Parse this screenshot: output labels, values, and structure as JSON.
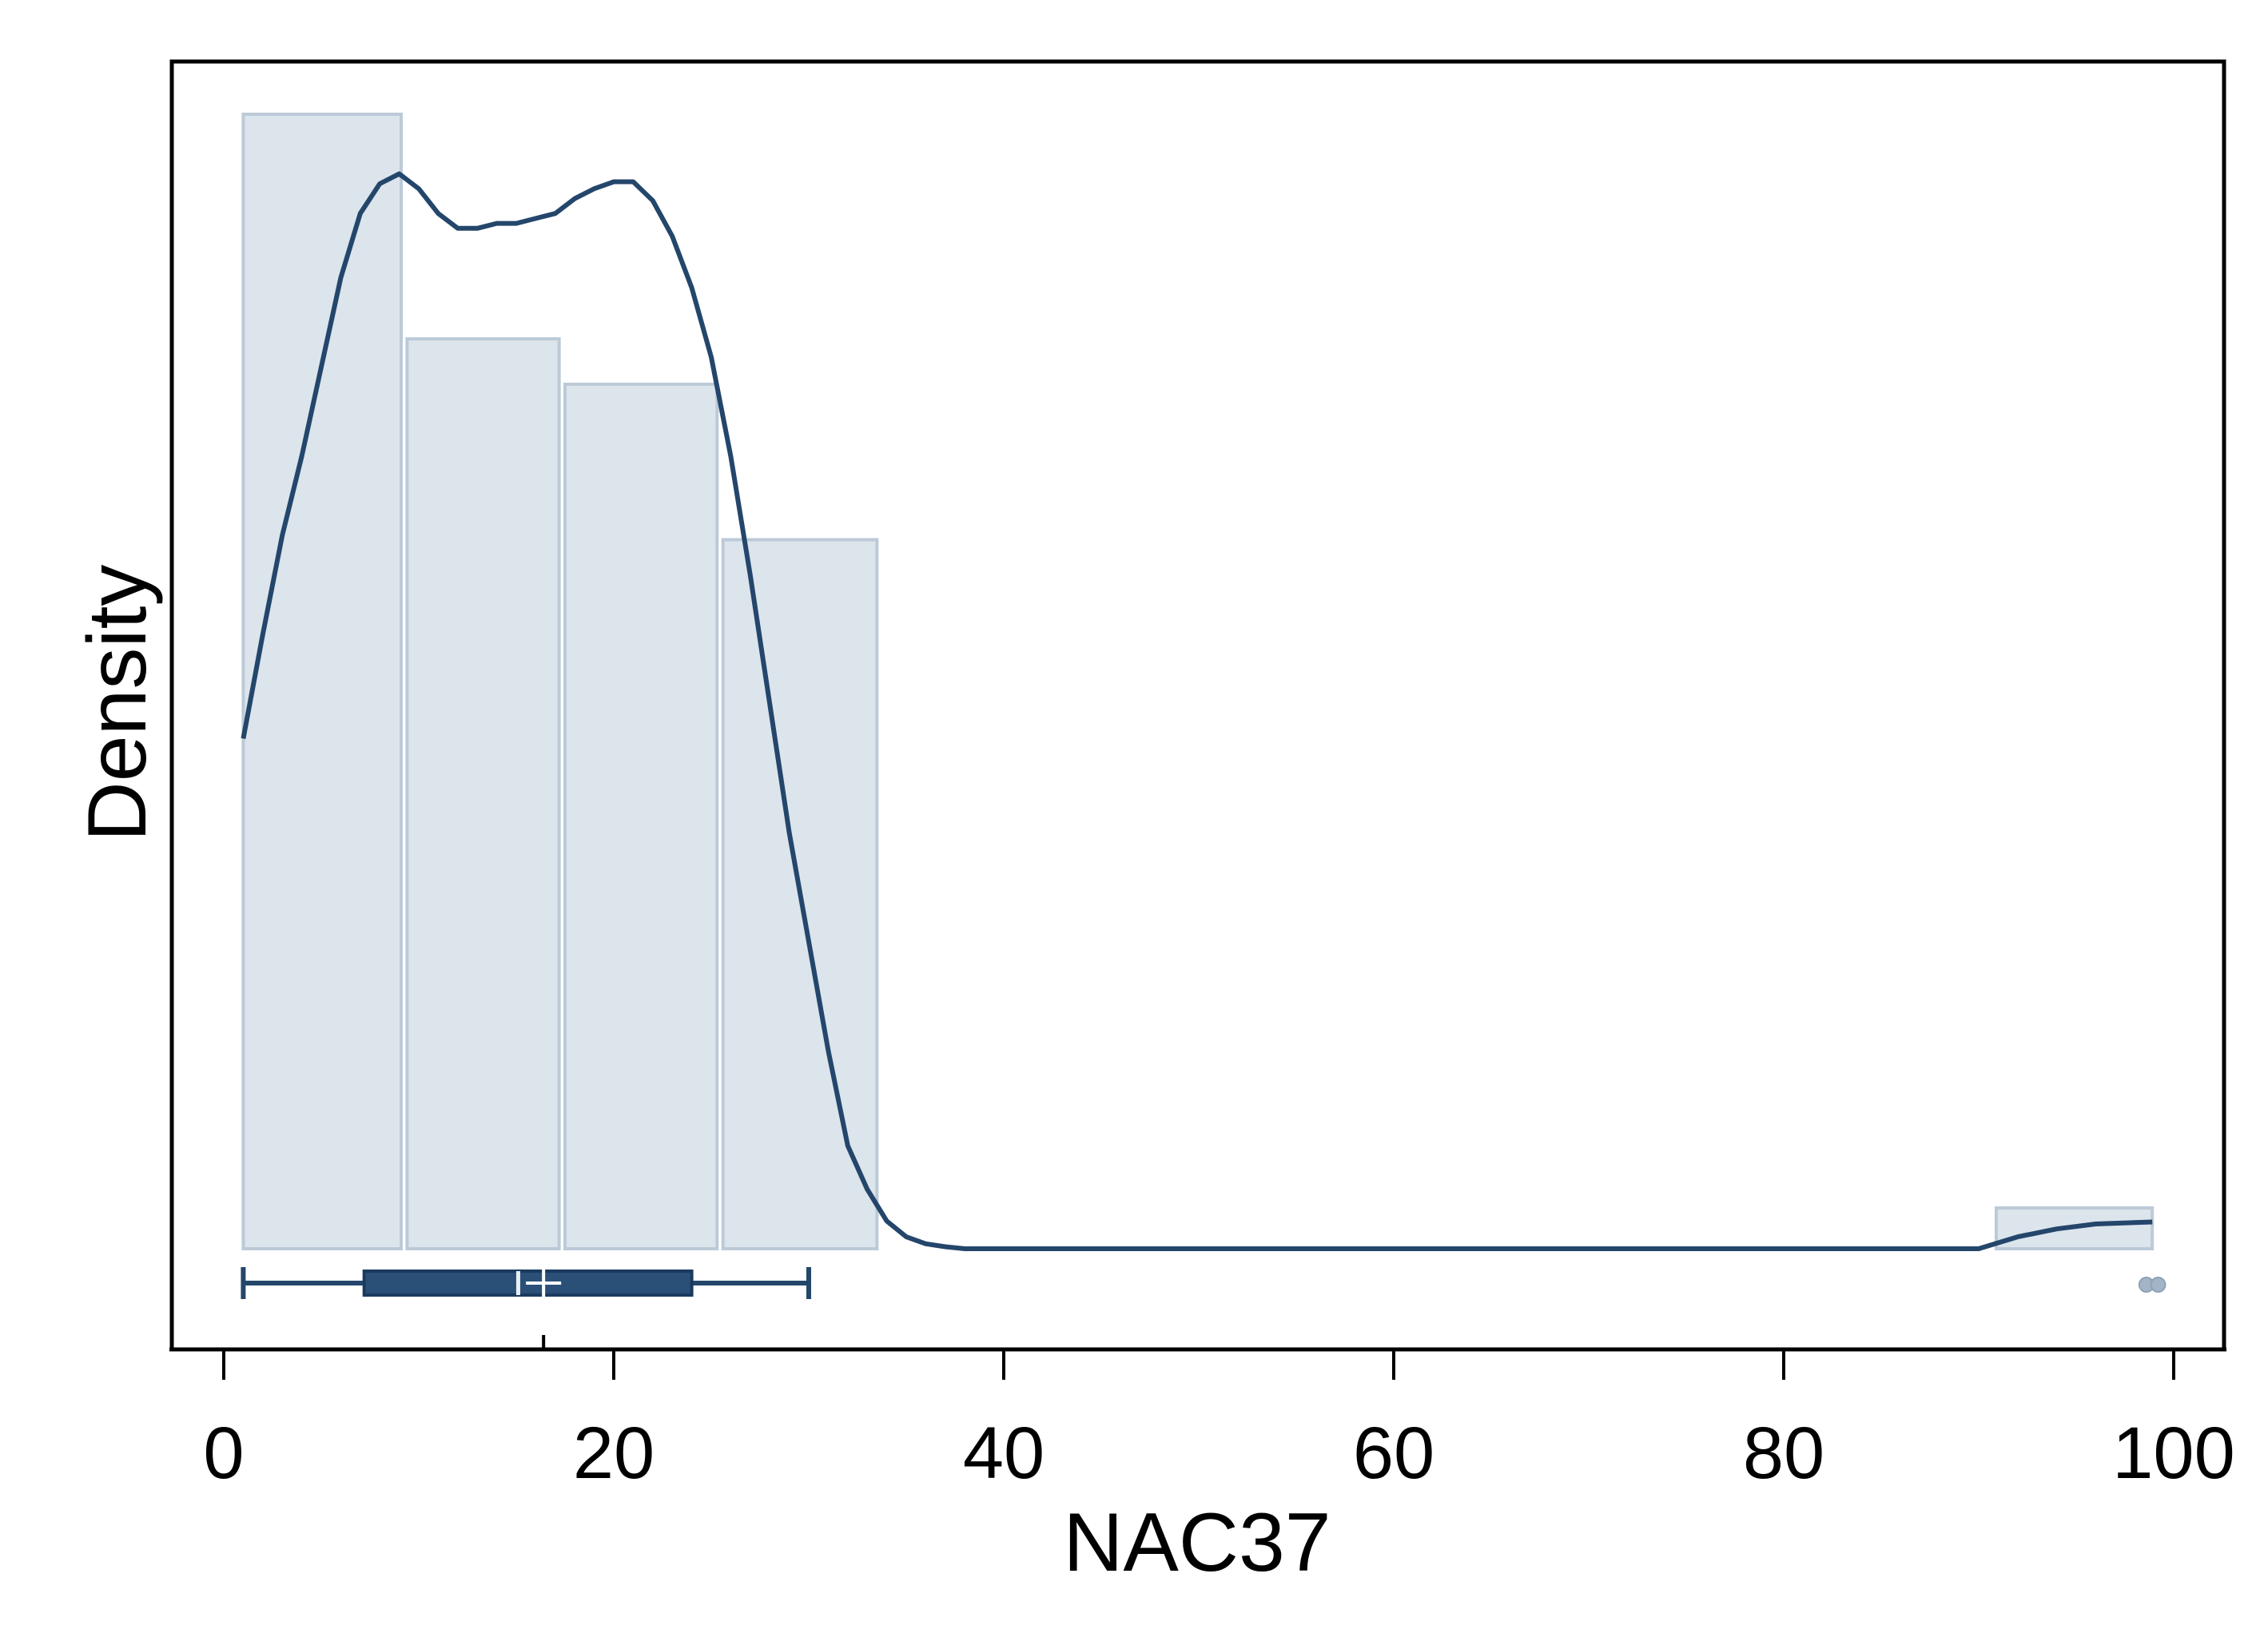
{
  "chart_data": {
    "type": "histogram",
    "title": "",
    "xlabel": "NAC37",
    "ylabel": "Density",
    "xlim": [
      -2.5,
      101.5
    ],
    "x_ticks": [
      0,
      20,
      40,
      60,
      80,
      100
    ],
    "x_tick_labels": [
      "0",
      "20",
      "40",
      "60",
      "80",
      "100"
    ],
    "y_ticks_shown": false,
    "grid": false,
    "legend": "none",
    "histogram": {
      "bins": [
        {
          "x0": 1.0,
          "x1": 9.1,
          "relative_height": 1.0
        },
        {
          "x0": 9.4,
          "x1": 17.2,
          "relative_height": 0.802
        },
        {
          "x0": 17.5,
          "x1": 25.3,
          "relative_height": 0.762
        },
        {
          "x0": 25.6,
          "x1": 33.5,
          "relative_height": 0.625
        },
        {
          "x0": 90.9,
          "x1": 98.9,
          "relative_height": 0.036
        }
      ]
    },
    "density_curve": {
      "x": [
        1.0,
        2.0,
        3.0,
        4.0,
        5.0,
        6.0,
        7.0,
        8.0,
        9.0,
        10.0,
        11.0,
        12.0,
        13.0,
        14.0,
        15.0,
        16.0,
        17.0,
        18.0,
        19.0,
        20.0,
        21.0,
        22.0,
        23.0,
        24.0,
        25.0,
        26.0,
        27.0,
        28.0,
        29.0,
        30.0,
        31.0,
        32.0,
        33.0,
        34.0,
        35.0,
        36.0,
        37.0,
        38.0,
        39.0,
        39.5,
        60.0,
        90.0,
        92.0,
        94.0,
        96.0,
        98.9
      ],
      "relative_density": [
        0.515,
        0.62,
        0.72,
        0.8,
        0.89,
        0.98,
        1.045,
        1.075,
        1.085,
        1.07,
        1.045,
        1.03,
        1.03,
        1.035,
        1.035,
        1.04,
        1.045,
        1.06,
        1.07,
        1.077,
        1.077,
        1.058,
        1.022,
        0.97,
        0.9,
        0.8,
        0.68,
        0.55,
        0.42,
        0.31,
        0.2,
        0.104,
        0.06,
        0.028,
        0.012,
        0.005,
        0.002,
        0.0,
        0.0,
        0.0,
        0.0,
        0.0,
        0.012,
        0.02,
        0.025,
        0.027
      ]
    },
    "boxplot": {
      "whisker_low": 1.0,
      "q1": 7.2,
      "median": 15.1,
      "mean": 16.4,
      "q3": 24.0,
      "whisker_high": 30.0,
      "outliers": [
        98.6,
        99.2
      ]
    },
    "colors": {
      "bar_fill": "#dce4ec",
      "bar_stroke": "#bccad8",
      "curve": "#24466b",
      "box_fill": "#2a5078",
      "box_stroke": "#1b3a5e",
      "outlier": "#a3b4c6",
      "frame": "#000000"
    }
  }
}
